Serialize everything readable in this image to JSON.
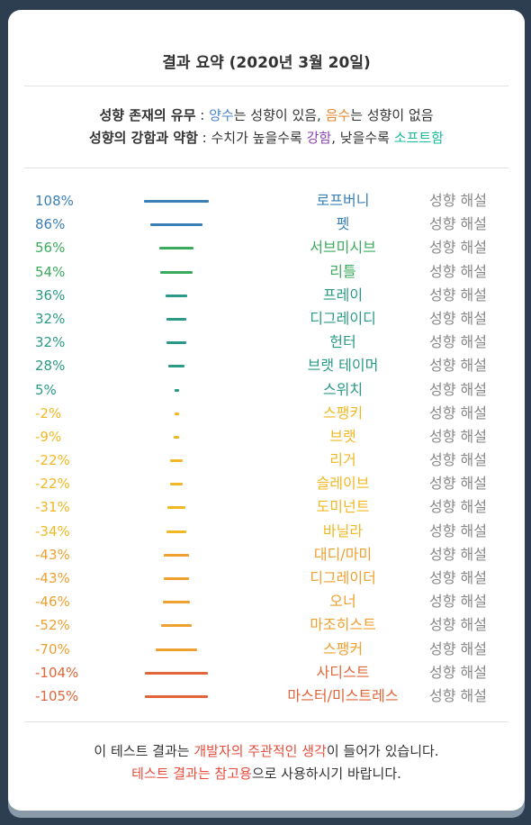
{
  "title": "결과 요약 (2020년 3월 20일)",
  "legend": {
    "line1": {
      "label": "성향 존재의 유무",
      "sep": " : ",
      "pos_word": "양수",
      "pos_rest": "는 성향이 있음, ",
      "neg_word": "음수",
      "neg_rest": "는 성향이 없음"
    },
    "line2": {
      "label": "성향의 강함과 약함",
      "sep": " : 수치가 높을수록 ",
      "strong_word": "강함",
      "mid": ", 낮을수록 ",
      "soft_word": "소프트함"
    }
  },
  "results": [
    {
      "percent": "108%",
      "value": 108,
      "name": "로프버니",
      "color": "#3a7fb5",
      "desc": "성향 해설"
    },
    {
      "percent": "86%",
      "value": 86,
      "name": "펫",
      "color": "#3a7fb5",
      "desc": "성향 해설"
    },
    {
      "percent": "56%",
      "value": 56,
      "name": "서브미시브",
      "color": "#3aaa5c",
      "desc": "성향 해설"
    },
    {
      "percent": "54%",
      "value": 54,
      "name": "리틀",
      "color": "#3aaa5c",
      "desc": "성향 해설"
    },
    {
      "percent": "36%",
      "value": 36,
      "name": "프레이",
      "color": "#2a9a86",
      "desc": "성향 해설"
    },
    {
      "percent": "32%",
      "value": 32,
      "name": "디그레이디",
      "color": "#2a9a86",
      "desc": "성향 해설"
    },
    {
      "percent": "32%",
      "value": 32,
      "name": "헌터",
      "color": "#2a9a86",
      "desc": "성향 해설"
    },
    {
      "percent": "28%",
      "value": 28,
      "name": "브랫 테이머",
      "color": "#2a9a86",
      "desc": "성향 해설"
    },
    {
      "percent": "5%",
      "value": 5,
      "name": "스위치",
      "color": "#2a9a86",
      "desc": "성향 해설"
    },
    {
      "percent": "-2%",
      "value": -2,
      "name": "스팽키",
      "color": "#f0b824",
      "desc": "성향 해설"
    },
    {
      "percent": "-9%",
      "value": -9,
      "name": "브랫",
      "color": "#f0b824",
      "desc": "성향 해설"
    },
    {
      "percent": "-22%",
      "value": -22,
      "name": "리거",
      "color": "#f0b824",
      "desc": "성향 해설"
    },
    {
      "percent": "-22%",
      "value": -22,
      "name": "슬레이브",
      "color": "#f0b824",
      "desc": "성향 해설"
    },
    {
      "percent": "-31%",
      "value": -31,
      "name": "도미넌트",
      "color": "#f0b824",
      "desc": "성향 해설"
    },
    {
      "percent": "-34%",
      "value": -34,
      "name": "바닐라",
      "color": "#f0b824",
      "desc": "성향 해설"
    },
    {
      "percent": "-43%",
      "value": -43,
      "name": "대디/마미",
      "color": "#eea030",
      "desc": "성향 해설"
    },
    {
      "percent": "-43%",
      "value": -43,
      "name": "디그레이더",
      "color": "#eea030",
      "desc": "성향 해설"
    },
    {
      "percent": "-46%",
      "value": -46,
      "name": "오너",
      "color": "#eea030",
      "desc": "성향 해설"
    },
    {
      "percent": "-52%",
      "value": -52,
      "name": "마조히스트",
      "color": "#eea030",
      "desc": "성향 해설"
    },
    {
      "percent": "-70%",
      "value": -70,
      "name": "스팽커",
      "color": "#eea030",
      "desc": "성향 해설"
    },
    {
      "percent": "-104%",
      "value": -104,
      "name": "사디스트",
      "color": "#e0663a",
      "desc": "성향 해설"
    },
    {
      "percent": "-105%",
      "value": -105,
      "name": "마스터/미스트레스",
      "color": "#e0663a",
      "desc": "성향 해설"
    }
  ],
  "footer": {
    "line1_a": "이 테스트 결과는 ",
    "line1_red": "개발자의 주관적인 생각",
    "line1_b": "이 들어가 있습니다.",
    "line2_red": "테스트 결과는 참고용",
    "line2_b": "으로 사용하시기 바랍니다."
  },
  "colors": {
    "positive": "#4a86c8",
    "negative": "#e8842e",
    "strong": "#8e44ad",
    "soft": "#1abc9c",
    "footer_red": "#e74c3c"
  }
}
